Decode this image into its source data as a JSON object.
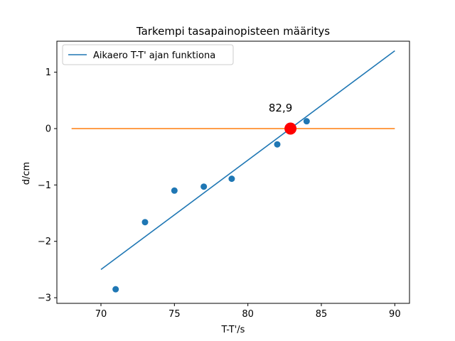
{
  "chart_data": {
    "type": "scatter",
    "title": "Tarkempi tasapainopisteen määritys",
    "xlabel": "T-T'/s",
    "ylabel": "d/cm",
    "xlim": [
      67,
      91
    ],
    "ylim": [
      -3.1,
      1.55
    ],
    "xticks": [
      70,
      75,
      80,
      85,
      90
    ],
    "yticks": [
      -3,
      -2,
      -1,
      0,
      1
    ],
    "ytick_labels": [
      "−3",
      "−2",
      "−1",
      "0",
      "1"
    ],
    "grid": false,
    "legend_position": "top-left",
    "legend_entries": [
      {
        "label": "Aikaero T-T' ajan funktiona",
        "color": "#1f77b4"
      }
    ],
    "scatter_points": {
      "color": "#1f77b4",
      "x": [
        71,
        73,
        75,
        77,
        78.9,
        82,
        84
      ],
      "y": [
        -2.85,
        -1.66,
        -1.1,
        -1.03,
        -0.89,
        -0.28,
        0.13
      ]
    },
    "fit_line": {
      "color": "#1f77b4",
      "x": [
        70,
        90
      ],
      "y": [
        -2.5,
        1.38
      ]
    },
    "zero_line": {
      "color": "#ff7f0e",
      "x": [
        68,
        90
      ],
      "y": [
        0,
        0
      ]
    },
    "intersection": {
      "color": "#ff0000",
      "x": 82.9,
      "y": 0,
      "label": "82,9"
    }
  }
}
